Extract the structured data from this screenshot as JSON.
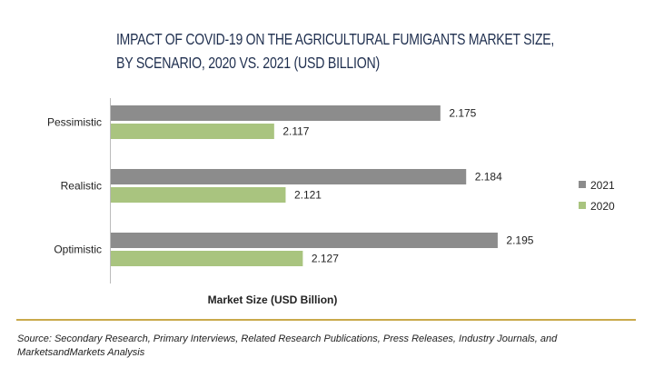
{
  "chart_data": {
    "type": "bar",
    "orientation": "horizontal",
    "title": "IMPACT OF COVID-19 ON THE AGRICULTURAL FUMIGANTS MARKET SIZE, BY SCENARIO, 2020 VS. 2021 (USD BILLION)",
    "title_lines": [
      "IMPACT OF COVID-19 ON THE AGRICULTURAL FUMIGANTS MARKET SIZE,",
      "BY SCENARIO, 2020 VS. 2021 (USD BILLION)"
    ],
    "categories": [
      "Pessimistic",
      "Realistic",
      "Optimistic"
    ],
    "series": [
      {
        "name": "2021",
        "values": [
          2.175,
          2.184,
          2.195
        ],
        "color": "#8c8c8c"
      },
      {
        "name": "2020",
        "values": [
          2.117,
          2.121,
          2.127
        ],
        "color": "#a9c47f"
      }
    ],
    "xlabel": "Market Size (USD Billion)",
    "ylabel": "",
    "xlim": [
      2.06,
      2.24
    ],
    "grid": false,
    "legend_position": "right",
    "data_labels": true
  },
  "source": "Source: Secondary Research, Primary Interviews, Related Research Publications, Press Releases, Industry Journals, and MarketsandMarkets Analysis",
  "source_lines": [
    "Source: Secondary Research, Primary Interviews, Related Research Publications, Press Releases, Industry Journals, and",
    "MarketsandMarkets Analysis"
  ],
  "colors": {
    "title": "#1f2f4f",
    "rule": "#c9a94b"
  }
}
